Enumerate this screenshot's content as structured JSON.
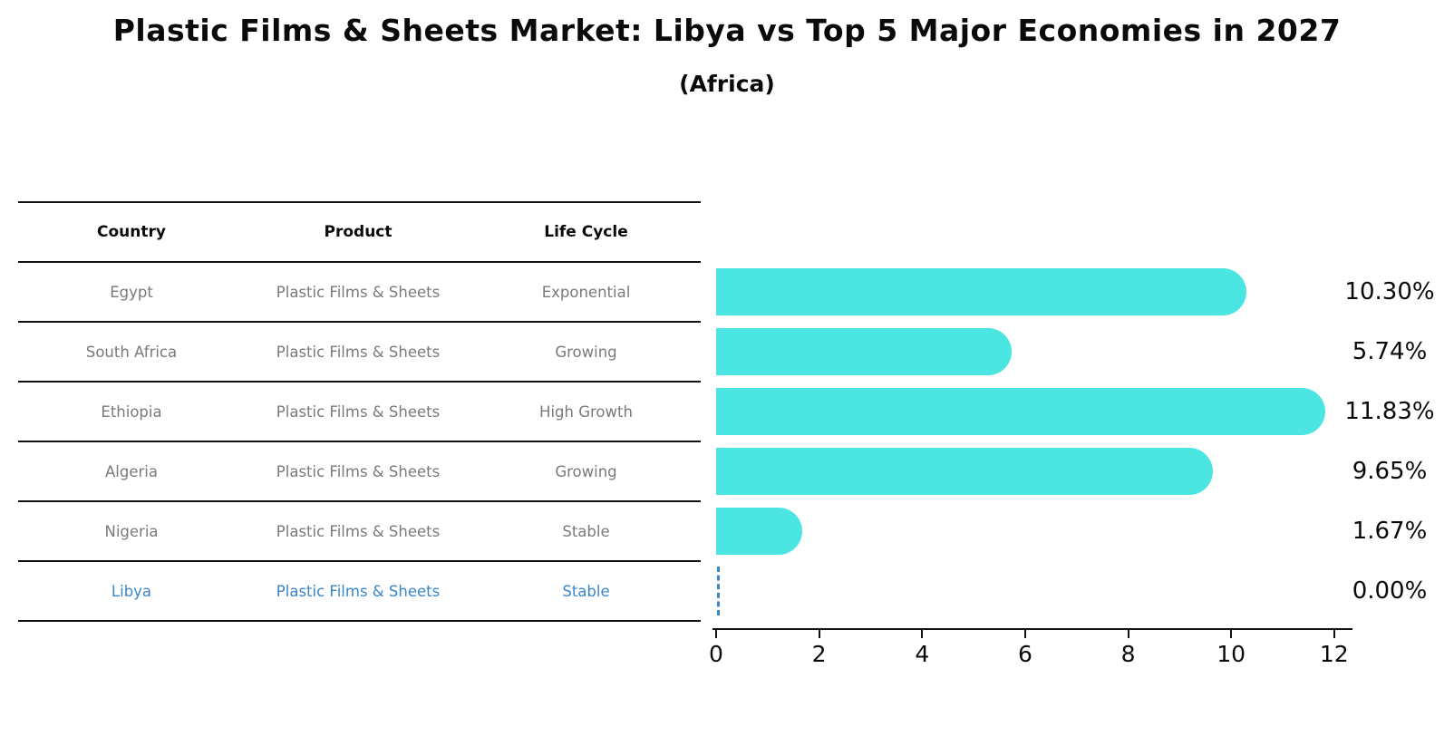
{
  "title": "Plastic Films & Sheets Market: Libya vs Top 5 Major Economies in 2027",
  "subtitle": "(Africa)",
  "table": {
    "headers": [
      "Country",
      "Product",
      "Life Cycle"
    ],
    "rows": [
      {
        "country": "Egypt",
        "product": "Plastic Films & Sheets",
        "life_cycle": "Exponential"
      },
      {
        "country": "South Africa",
        "product": "Plastic Films & Sheets",
        "life_cycle": "Growing"
      },
      {
        "country": "Ethiopia",
        "product": "Plastic Films & Sheets",
        "life_cycle": "High Growth"
      },
      {
        "country": "Algeria",
        "product": "Plastic Films & Sheets",
        "life_cycle": "Growing"
      },
      {
        "country": "Nigeria",
        "product": "Plastic Films & Sheets",
        "life_cycle": "Stable"
      },
      {
        "country": "Libya",
        "product": "Plastic Films & Sheets",
        "life_cycle": "Stable"
      }
    ],
    "highlighted_row": "Libya"
  },
  "chart_data": {
    "type": "bar",
    "orientation": "horizontal",
    "title": "Plastic Films & Sheets Market: Libya vs Top 5 Major Economies in 2027 (Africa)",
    "categories": [
      "Egypt",
      "South Africa",
      "Ethiopia",
      "Algeria",
      "Nigeria",
      "Libya"
    ],
    "values": [
      10.3,
      5.74,
      11.83,
      9.65,
      1.67,
      0.0
    ],
    "value_labels": [
      "10.30%",
      "5.74%",
      "11.83%",
      "9.65%",
      "1.67%",
      "0.00%"
    ],
    "xlabel": "",
    "ylabel": "",
    "xlim": [
      0,
      12.32
    ],
    "xticks": [
      0,
      2,
      4,
      6,
      8,
      10,
      12
    ],
    "grid": false,
    "legend": false,
    "bar_color": "#4be6e2",
    "highlight_color": "#3a86c8",
    "zero_bar_style": "dashed-outline"
  },
  "colors": {
    "bar": "#4be6e2",
    "highlight_blue": "#3a86c8",
    "row_text_gray": "#7a7a7a",
    "line_black": "#111111"
  }
}
